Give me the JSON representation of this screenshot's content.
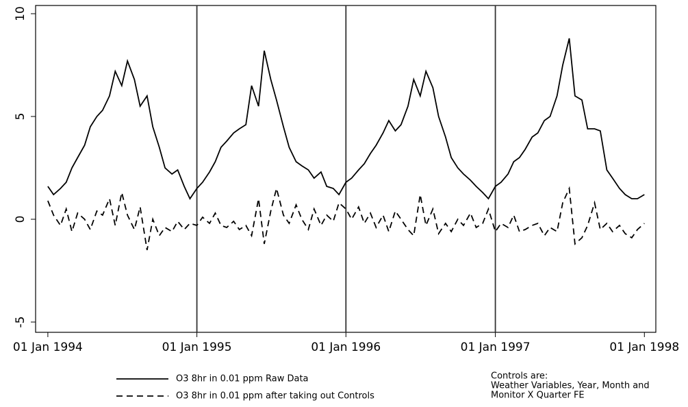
{
  "chart_data": {
    "type": "line",
    "x": [
      "1994-01-01",
      "1994-01-15",
      "1994-02-01",
      "1994-02-15",
      "1994-03-01",
      "1994-03-15",
      "1994-04-01",
      "1994-04-15",
      "1994-05-01",
      "1994-05-15",
      "1994-06-01",
      "1994-06-15",
      "1994-07-01",
      "1994-07-15",
      "1994-08-01",
      "1994-08-15",
      "1994-09-01",
      "1994-09-15",
      "1994-10-01",
      "1994-10-15",
      "1994-11-01",
      "1994-11-15",
      "1994-12-01",
      "1994-12-15",
      "1995-01-01",
      "1995-01-15",
      "1995-02-01",
      "1995-02-15",
      "1995-03-01",
      "1995-03-15",
      "1995-04-01",
      "1995-04-15",
      "1995-05-01",
      "1995-05-15",
      "1995-06-01",
      "1995-06-15",
      "1995-07-01",
      "1995-07-15",
      "1995-08-01",
      "1995-08-15",
      "1995-09-01",
      "1995-09-15",
      "1995-10-01",
      "1995-10-15",
      "1995-11-01",
      "1995-11-15",
      "1995-12-01",
      "1995-12-15",
      "1996-01-01",
      "1996-01-15",
      "1996-02-01",
      "1996-02-15",
      "1996-03-01",
      "1996-03-15",
      "1996-04-01",
      "1996-04-15",
      "1996-05-01",
      "1996-05-15",
      "1996-06-01",
      "1996-06-15",
      "1996-07-01",
      "1996-07-15",
      "1996-08-01",
      "1996-08-15",
      "1996-09-01",
      "1996-09-15",
      "1996-10-01",
      "1996-10-15",
      "1996-11-01",
      "1996-11-15",
      "1996-12-01",
      "1996-12-15",
      "1997-01-01",
      "1997-01-15",
      "1997-02-01",
      "1997-02-15",
      "1997-03-01",
      "1997-03-15",
      "1997-04-01",
      "1997-04-15",
      "1997-05-01",
      "1997-05-15",
      "1997-06-01",
      "1997-06-15",
      "1997-07-01",
      "1997-07-15",
      "1997-08-01",
      "1997-08-15",
      "1997-09-01",
      "1997-09-15",
      "1997-10-01",
      "1997-10-15",
      "1997-11-01",
      "1997-11-15",
      "1997-12-01",
      "1997-12-15",
      "1998-01-01"
    ],
    "series": [
      {
        "name": "O3 8hr in 0.01 ppm Raw Data",
        "color": "#000000",
        "dash": "none",
        "values": [
          1.6,
          1.2,
          1.5,
          1.8,
          2.5,
          3.0,
          3.6,
          4.5,
          5.0,
          5.3,
          6.0,
          7.2,
          6.5,
          7.7,
          6.8,
          5.5,
          6.0,
          4.5,
          3.5,
          2.5,
          2.2,
          2.4,
          1.6,
          1.0,
          1.5,
          1.8,
          2.3,
          2.8,
          3.5,
          3.8,
          4.2,
          4.4,
          4.6,
          6.5,
          5.5,
          8.2,
          6.8,
          5.8,
          4.5,
          3.5,
          2.8,
          2.6,
          2.4,
          2.0,
          2.3,
          1.6,
          1.5,
          1.2,
          1.8,
          2.0,
          2.4,
          2.7,
          3.2,
          3.6,
          4.2,
          4.8,
          4.3,
          4.6,
          5.5,
          6.8,
          6.0,
          7.2,
          6.4,
          5.0,
          4.0,
          3.0,
          2.5,
          2.2,
          1.9,
          1.6,
          1.3,
          1.0,
          1.6,
          1.8,
          2.2,
          2.8,
          3.0,
          3.4,
          4.0,
          4.2,
          4.8,
          5.0,
          6.0,
          7.5,
          8.8,
          6.0,
          5.8,
          4.4,
          4.4,
          4.3,
          2.4,
          2.0,
          1.5,
          1.2,
          1.0,
          1.0,
          1.2
        ]
      },
      {
        "name": "O3 8hr in 0.01 ppm after taking out Controls",
        "color": "#000000",
        "dash": "9 6",
        "values": [
          0.9,
          0.2,
          -0.3,
          0.5,
          -0.6,
          0.3,
          0.0,
          -0.5,
          0.4,
          0.2,
          1.0,
          -0.3,
          1.3,
          0.2,
          -0.5,
          0.6,
          -1.5,
          0.0,
          -0.8,
          -0.4,
          -0.6,
          -0.1,
          -0.5,
          -0.2,
          -0.3,
          0.1,
          -0.2,
          0.3,
          -0.3,
          -0.4,
          -0.1,
          -0.5,
          -0.3,
          -0.8,
          1.0,
          -1.2,
          0.4,
          1.5,
          0.2,
          -0.2,
          0.7,
          0.0,
          -0.5,
          0.5,
          -0.3,
          0.2,
          -0.1,
          0.8,
          0.5,
          0.0,
          0.6,
          -0.2,
          0.3,
          -0.4,
          0.2,
          -0.6,
          0.4,
          0.0,
          -0.5,
          -0.8,
          1.2,
          -0.3,
          0.5,
          -0.7,
          -0.2,
          -0.6,
          0.0,
          -0.3,
          0.3,
          -0.4,
          -0.2,
          0.5,
          -0.6,
          -0.2,
          -0.4,
          0.2,
          -0.6,
          -0.5,
          -0.3,
          -0.2,
          -0.8,
          -0.4,
          -0.6,
          0.8,
          1.5,
          -1.2,
          -0.9,
          -0.3,
          0.8,
          -0.5,
          -0.2,
          -0.6,
          -0.3,
          -0.7,
          -0.9,
          -0.5,
          -0.2
        ]
      }
    ],
    "xlim": [
      "1993-12-02",
      "1998-01-29"
    ],
    "xticks": [
      {
        "value": "1994-01-01",
        "label": "01 Jan 1994"
      },
      {
        "value": "1995-01-01",
        "label": "01 Jan 1995"
      },
      {
        "value": "1996-01-01",
        "label": "01 Jan 1996"
      },
      {
        "value": "1997-01-01",
        "label": "01 Jan 1997"
      },
      {
        "value": "1998-01-01",
        "label": "01 Jan 1998"
      }
    ],
    "ylim": [
      -5.5,
      10.4
    ],
    "yticks": [
      -5,
      0,
      5,
      10
    ],
    "xgrid": true,
    "annotation": [
      "Controls are:",
      "Weather Variables, Year, Month and",
      "Monitor X Quarter FE"
    ]
  }
}
